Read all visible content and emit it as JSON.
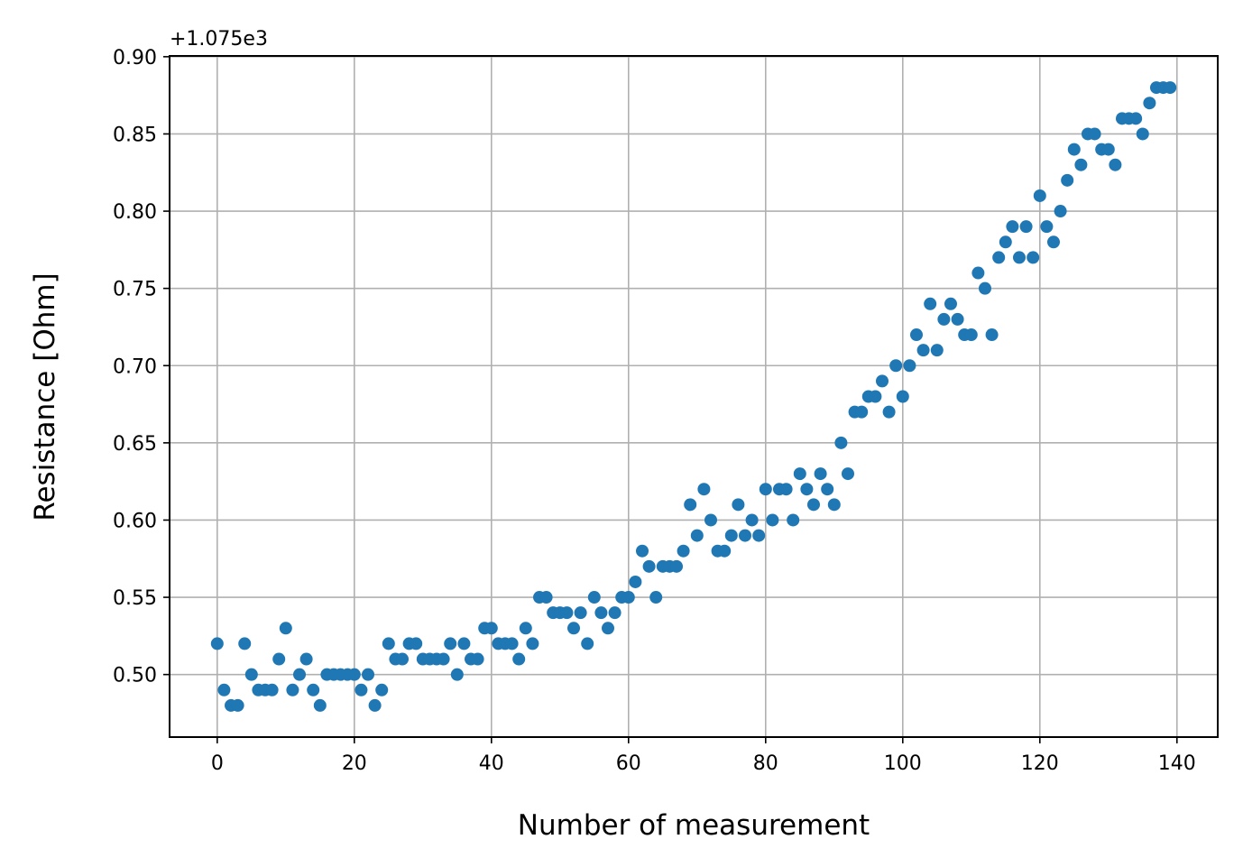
{
  "chart_data": {
    "type": "scatter",
    "title": "",
    "xlabel": "Number of measurement",
    "ylabel": "Resistance [Ohm]",
    "y_offset_label": "+1.075e3",
    "y_offset": 1075,
    "xlim": [
      -6.95,
      145.95
    ],
    "ylim": [
      0.4595,
      0.9005
    ],
    "grid": true,
    "marker_color": "#1f77b4",
    "x_ticks": [
      0,
      20,
      40,
      60,
      80,
      100,
      120,
      140
    ],
    "x_tick_labels": [
      "0",
      "20",
      "40",
      "60",
      "80",
      "100",
      "120",
      "140"
    ],
    "y_ticks": [
      0.5,
      0.55,
      0.6,
      0.65,
      0.7,
      0.75,
      0.8,
      0.85,
      0.9
    ],
    "y_tick_labels": [
      "0.50",
      "0.55",
      "0.60",
      "0.65",
      "0.70",
      "0.75",
      "0.80",
      "0.85",
      "0.90"
    ],
    "series": [
      {
        "x": [
          0,
          1,
          2,
          3,
          4,
          5,
          6,
          7,
          8,
          9,
          10,
          11,
          12,
          13,
          14,
          15,
          16,
          17,
          18,
          19,
          20,
          21,
          22,
          23,
          24,
          25,
          26,
          27,
          28,
          29,
          30,
          31,
          32,
          33,
          34,
          35,
          36,
          37,
          38,
          39,
          40,
          41,
          42,
          43,
          44,
          45,
          46,
          47,
          48,
          49,
          50,
          51,
          52,
          53,
          54,
          55,
          56,
          57,
          58,
          59,
          60,
          61,
          62,
          63,
          64,
          65,
          66,
          67,
          68,
          69,
          70,
          71,
          72,
          73,
          74,
          75,
          76,
          77,
          78,
          79,
          80,
          81,
          82,
          83,
          84,
          85,
          86,
          87,
          88,
          89,
          90,
          91,
          92,
          93,
          94,
          95,
          96,
          97,
          98,
          99,
          100,
          101,
          102,
          103,
          104,
          105,
          106,
          107,
          108,
          109,
          110,
          111,
          112,
          113,
          114,
          115,
          116,
          117,
          118,
          119,
          120,
          121,
          122,
          123,
          124,
          125,
          126,
          127,
          128,
          129,
          130,
          131,
          132,
          133,
          134,
          135,
          136,
          137,
          138,
          139
        ],
        "y": [
          0.52,
          0.49,
          0.48,
          0.48,
          0.52,
          0.5,
          0.49,
          0.49,
          0.49,
          0.51,
          0.53,
          0.49,
          0.5,
          0.51,
          0.49,
          0.48,
          0.5,
          0.5,
          0.5,
          0.5,
          0.5,
          0.49,
          0.5,
          0.48,
          0.49,
          0.52,
          0.51,
          0.51,
          0.52,
          0.52,
          0.51,
          0.51,
          0.51,
          0.51,
          0.52,
          0.5,
          0.52,
          0.51,
          0.51,
          0.53,
          0.53,
          0.52,
          0.52,
          0.52,
          0.51,
          0.53,
          0.52,
          0.55,
          0.55,
          0.54,
          0.54,
          0.54,
          0.53,
          0.54,
          0.52,
          0.55,
          0.54,
          0.53,
          0.54,
          0.55,
          0.55,
          0.56,
          0.58,
          0.57,
          0.55,
          0.57,
          0.57,
          0.57,
          0.58,
          0.61,
          0.59,
          0.62,
          0.6,
          0.58,
          0.58,
          0.59,
          0.61,
          0.59,
          0.6,
          0.59,
          0.62,
          0.6,
          0.62,
          0.62,
          0.6,
          0.63,
          0.62,
          0.61,
          0.63,
          0.62,
          0.61,
          0.65,
          0.63,
          0.67,
          0.67,
          0.68,
          0.68,
          0.69,
          0.67,
          0.7,
          0.68,
          0.7,
          0.72,
          0.71,
          0.74,
          0.71,
          0.73,
          0.74,
          0.73,
          0.72,
          0.72,
          0.76,
          0.75,
          0.72,
          0.77,
          0.78,
          0.79,
          0.77,
          0.79,
          0.77,
          0.81,
          0.79,
          0.78,
          0.8,
          0.82,
          0.84,
          0.83,
          0.85,
          0.85,
          0.84,
          0.84,
          0.83,
          0.86,
          0.86,
          0.86,
          0.85,
          0.87,
          0.88,
          0.88,
          0.88
        ]
      }
    ]
  }
}
